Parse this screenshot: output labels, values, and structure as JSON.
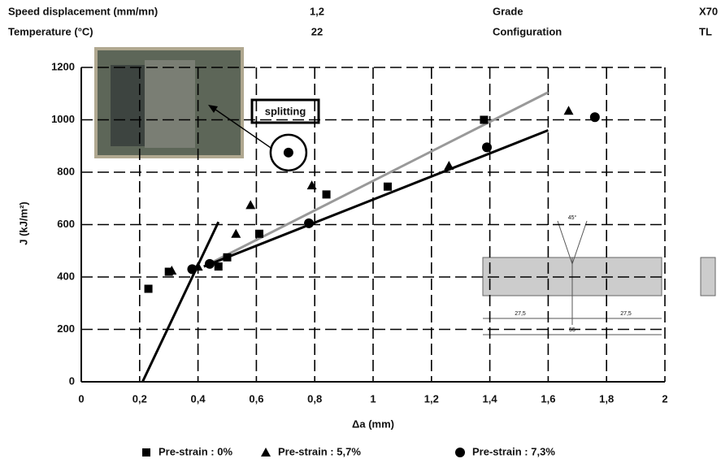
{
  "header": {
    "rows": [
      [
        "Speed displacement (mm/mn)",
        "1,2",
        "Grade",
        "X70"
      ],
      [
        "Temperature (°C)",
        "22",
        "Configuration",
        "TL"
      ]
    ]
  },
  "chart_data": {
    "type": "scatter",
    "x_label": "Δa (mm)",
    "y_label": "J (kJ/m²)",
    "xlim": [
      0,
      2
    ],
    "ylim": [
      0,
      1200
    ],
    "xticks": [
      0,
      {
        "value": 0.2,
        "label": "0,2"
      },
      {
        "value": 0.4,
        "label": "0,4"
      },
      {
        "value": 0.6,
        "label": "0,6"
      },
      {
        "value": 0.8,
        "label": "0,8"
      },
      1,
      {
        "value": 1.2,
        "label": "1,2"
      },
      {
        "value": 1.4,
        "label": "1,4"
      },
      {
        "value": 1.6,
        "label": "1,6"
      },
      {
        "value": 1.8,
        "label": "1,8"
      },
      2
    ],
    "yticks": [
      0,
      200,
      400,
      600,
      800,
      1000,
      1200
    ],
    "grid": true,
    "series": [
      {
        "name": "Pre-strain : 0%",
        "marker": "square",
        "color": "#000000",
        "x": [
          0.23,
          0.3,
          0.47,
          0.5,
          0.61,
          0.84,
          1.05,
          1.38
        ],
        "values": [
          355,
          420,
          440,
          475,
          565,
          715,
          745,
          1000
        ]
      },
      {
        "name": "Pre-strain : 5,7%",
        "marker": "triangle",
        "color": "#000000",
        "x": [
          0.31,
          0.4,
          0.53,
          0.58,
          0.79,
          1.26,
          1.67
        ],
        "values": [
          425,
          440,
          565,
          675,
          750,
          825,
          1035
        ]
      },
      {
        "name": "Pre-strain : 7,3%",
        "marker": "circle",
        "color": "#000000",
        "x": [
          0.38,
          0.44,
          0.71,
          0.78,
          1.39,
          1.76
        ],
        "values": [
          430,
          450,
          875,
          605,
          895,
          1010
        ]
      }
    ],
    "lines": [
      {
        "color": "#000000",
        "x": [
          0.21,
          0.47
        ],
        "values": [
          0,
          610
        ]
      },
      {
        "color": "#999999",
        "x": [
          0.42,
          1.6
        ],
        "values": [
          440,
          1105
        ]
      },
      {
        "color": "#000000",
        "x": [
          0.42,
          1.6
        ],
        "values": [
          440,
          960
        ]
      }
    ],
    "annotation": "splitting",
    "drawing_labels": [
      "45°",
      "27,5",
      "27,5",
      "55"
    ]
  }
}
